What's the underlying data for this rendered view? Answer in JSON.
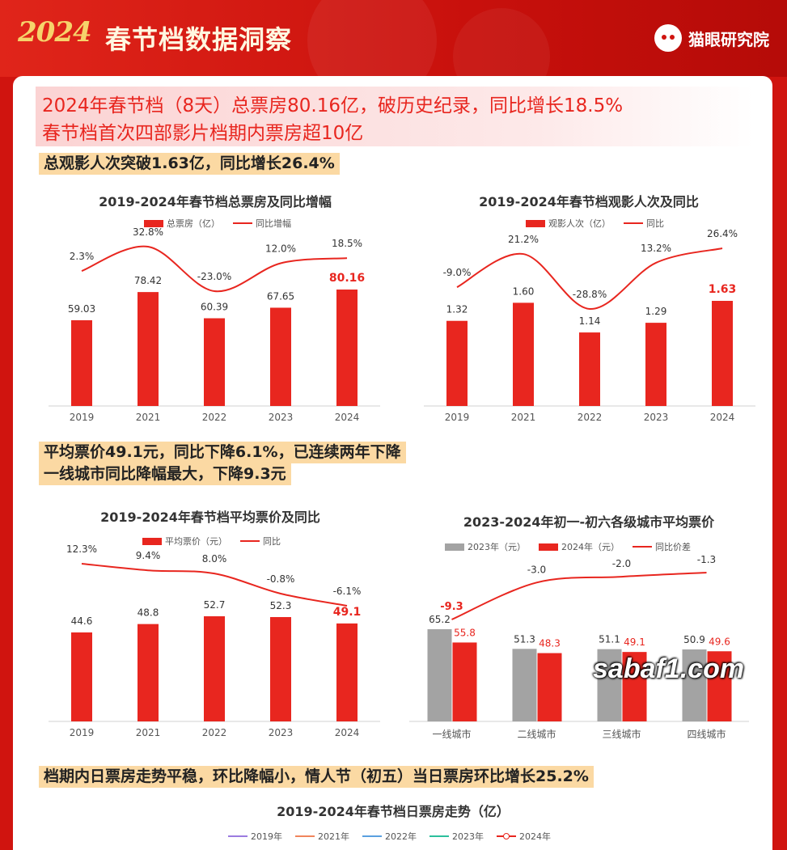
{
  "header": {
    "logo_year": "2024",
    "title": "春节档数据洞察",
    "brand": "猫眼研究院",
    "brand_icon": "cat-logo-icon"
  },
  "headline": {
    "line1": "2024年春节档（8天）总票房80.16亿，破历史纪录，同比增长18.5%",
    "line2": "春节档首次四部影片档期内票房超10亿"
  },
  "highlights": {
    "audience": "总观影人次突破1.63亿，同比增长26.4%",
    "price_line1": "平均票价49.1元，同比下降6.1%，已连续两年下降",
    "price_line2": "一线城市同比降幅最大，下降9.3元",
    "daily": "档期内日票房走势平稳，环比降幅小，情人节（初五）当日票房环比增长25.2%"
  },
  "colors": {
    "red": "#e8261f",
    "gray": "#a3a3a3",
    "text": "#333333"
  },
  "chart_data": [
    {
      "type": "bar",
      "title": "2019-2024年春节档总票房及同比增幅",
      "categories": [
        "2019",
        "2021",
        "2022",
        "2023",
        "2024"
      ],
      "series": [
        {
          "name": "总票房（亿）",
          "values": [
            59.03,
            78.42,
            60.39,
            67.65,
            80.16
          ],
          "labels": [
            "59.03",
            "78.42",
            "60.39",
            "67.65",
            "80.16"
          ]
        },
        {
          "name": "同比增幅",
          "type": "line",
          "values": [
            2.3,
            32.8,
            -23.0,
            12.0,
            18.5
          ],
          "labels": [
            "2.3%",
            "32.8%",
            "-23.0%",
            "12.0%",
            "18.5%"
          ]
        }
      ],
      "highlight_last": true
    },
    {
      "type": "bar",
      "title": "2019-2024年春节档观影人次及同比",
      "categories": [
        "2019",
        "2021",
        "2022",
        "2023",
        "2024"
      ],
      "series": [
        {
          "name": "观影人次（亿）",
          "values": [
            1.32,
            1.6,
            1.14,
            1.29,
            1.63
          ],
          "labels": [
            "1.32",
            "1.60",
            "1.14",
            "1.29",
            "1.63"
          ]
        },
        {
          "name": "同比",
          "type": "line",
          "values": [
            -9.0,
            21.2,
            -28.8,
            13.2,
            26.4
          ],
          "labels": [
            "-9.0%",
            "21.2%",
            "-28.8%",
            "13.2%",
            "26.4%"
          ]
        }
      ],
      "highlight_last": true
    },
    {
      "type": "bar",
      "title": "2019-2024年春节档平均票价及同比",
      "categories": [
        "2019",
        "2021",
        "2022",
        "2023",
        "2024"
      ],
      "series": [
        {
          "name": "平均票价（元）",
          "values": [
            44.6,
            48.8,
            52.7,
            52.3,
            49.1
          ],
          "labels": [
            "44.6",
            "48.8",
            "52.7",
            "52.3",
            "49.1"
          ]
        },
        {
          "name": "同比",
          "type": "line",
          "values": [
            12.3,
            9.4,
            8.0,
            -0.8,
            -6.1
          ],
          "labels": [
            "12.3%",
            "9.4%",
            "8.0%",
            "-0.8%",
            "-6.1%"
          ]
        }
      ],
      "highlight_last": true
    },
    {
      "type": "bar",
      "title": "2023-2024年初一-初六各级城市平均票价",
      "categories": [
        "一线城市",
        "二线城市",
        "三线城市",
        "四线城市"
      ],
      "series": [
        {
          "name": "2023年（元）",
          "values": [
            65.2,
            51.3,
            51.1,
            50.9
          ],
          "labels": [
            "65.2",
            "51.3",
            "51.1",
            "50.9"
          ]
        },
        {
          "name": "2024年（元）",
          "values": [
            55.8,
            48.3,
            49.1,
            49.6
          ],
          "labels": [
            "55.8",
            "48.3",
            "49.1",
            "49.6"
          ]
        },
        {
          "name": "同比价差",
          "type": "line",
          "values": [
            -9.3,
            -3.0,
            -2.0,
            -1.3
          ],
          "labels": [
            "-9.3",
            "-3.0",
            "-2.0",
            "-1.3"
          ]
        }
      ]
    },
    {
      "type": "line",
      "title": "2019-2024年春节档日票房走势（亿）",
      "series": [
        {
          "name": "2019年",
          "color": "#9b7be0"
        },
        {
          "name": "2021年",
          "color": "#f0855c"
        },
        {
          "name": "2022年",
          "color": "#5aa0e0"
        },
        {
          "name": "2023年",
          "color": "#2bbf9c"
        },
        {
          "name": "2024年",
          "color": "#e8261f"
        }
      ]
    }
  ],
  "watermark": "sabaf1.com"
}
